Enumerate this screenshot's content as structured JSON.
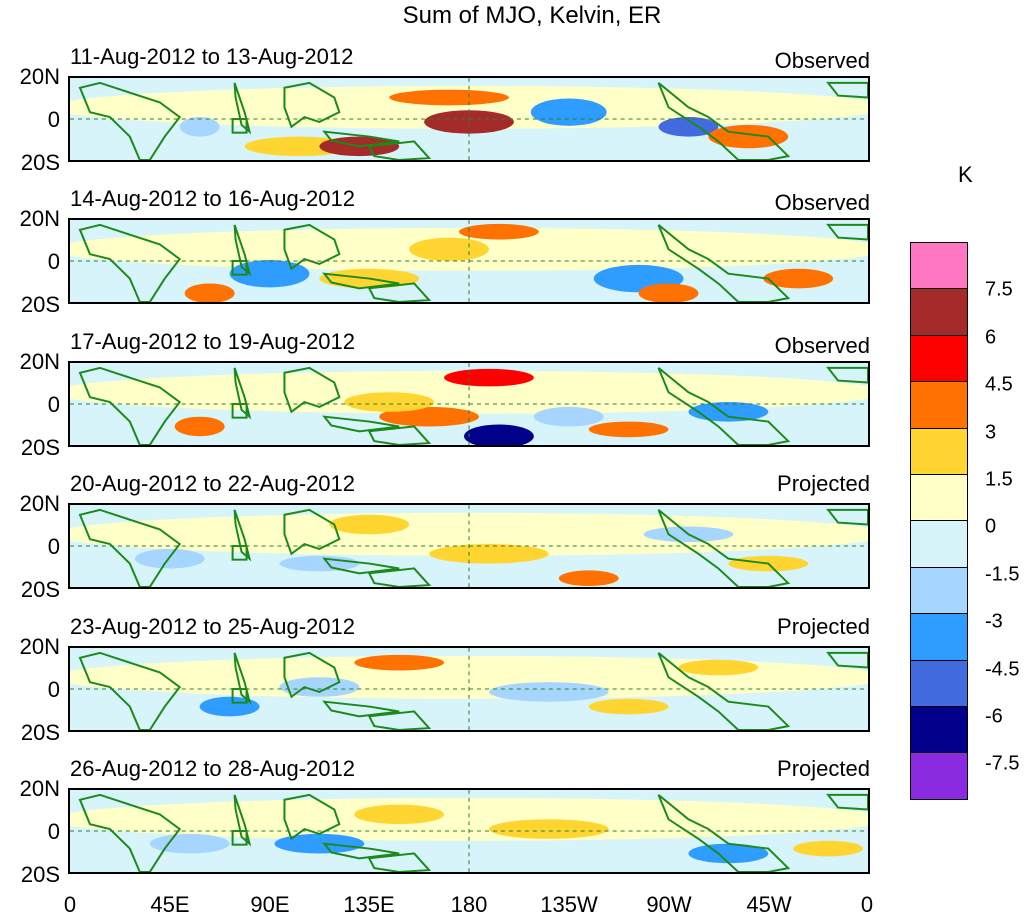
{
  "title": "Sum of MJO, Kelvin, ER",
  "lat_labels": [
    "20N",
    "0",
    "20S"
  ],
  "lon_labels": [
    "0",
    "45E",
    "90E",
    "135E",
    "180",
    "135W",
    "90W",
    "45W",
    "0"
  ],
  "units": "K",
  "panels": [
    {
      "date": "11-Aug-2012 to 13-Aug-2012",
      "label": "Observed"
    },
    {
      "date": "14-Aug-2012 to 16-Aug-2012",
      "label": "Observed"
    },
    {
      "date": "17-Aug-2012 to 19-Aug-2012",
      "label": "Observed"
    },
    {
      "date": "20-Aug-2012 to 22-Aug-2012",
      "label": "Projected"
    },
    {
      "date": "23-Aug-2012 to 25-Aug-2012",
      "label": "Projected"
    },
    {
      "date": "26-Aug-2012 to 28-Aug-2012",
      "label": "Projected"
    }
  ],
  "colorbar": {
    "labels": [
      "7.5",
      "6",
      "4.5",
      "3",
      "1.5",
      "0",
      "-1.5",
      "-3",
      "-4.5",
      "-6",
      "-7.5"
    ],
    "colors": [
      "#ff77c3",
      "#a52a2a",
      "#ff0000",
      "#ff7100",
      "#ffd631",
      "#ffffc8",
      "#d6f4fa",
      "#a6d6ff",
      "#2f9cff",
      "#416bdf",
      "#00008b",
      "#8a2be2"
    ]
  }
}
